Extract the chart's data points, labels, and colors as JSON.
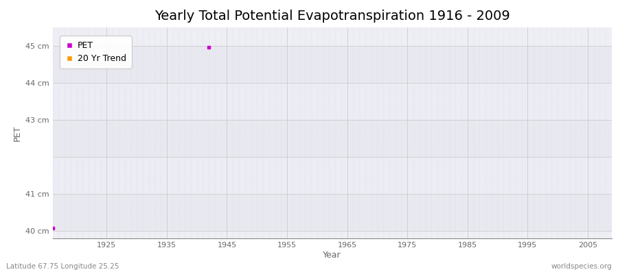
{
  "title": "Yearly Total Potential Evapotranspiration 1916 - 2009",
  "xlabel": "Year",
  "ylabel": "PET",
  "xlim": [
    1916,
    2009
  ],
  "ylim": [
    39.8,
    45.5
  ],
  "yticks": [
    40,
    41,
    43,
    44,
    45
  ],
  "ytick_labels": [
    "40 cm",
    "41 cm",
    "43 cm",
    "44 cm",
    "45 cm"
  ],
  "xticks": [
    1925,
    1935,
    1945,
    1955,
    1965,
    1975,
    1985,
    1995,
    2005
  ],
  "pet_points": [
    [
      1916,
      40.07
    ],
    [
      1942,
      44.96
    ]
  ],
  "pet_color": "#cc00cc",
  "trend_color": "#ff9900",
  "plot_bg_color": "#eeeef5",
  "alt_band_color": "#e4e4ee",
  "grid_major_color": "#cccccc",
  "grid_minor_color": "#dddddd",
  "legend_labels": [
    "PET",
    "20 Yr Trend"
  ],
  "subtitle_left": "Latitude 67.75 Longitude 25.25",
  "subtitle_right": "worldspecies.org",
  "title_fontsize": 14,
  "label_fontsize": 9,
  "tick_fontsize": 8
}
